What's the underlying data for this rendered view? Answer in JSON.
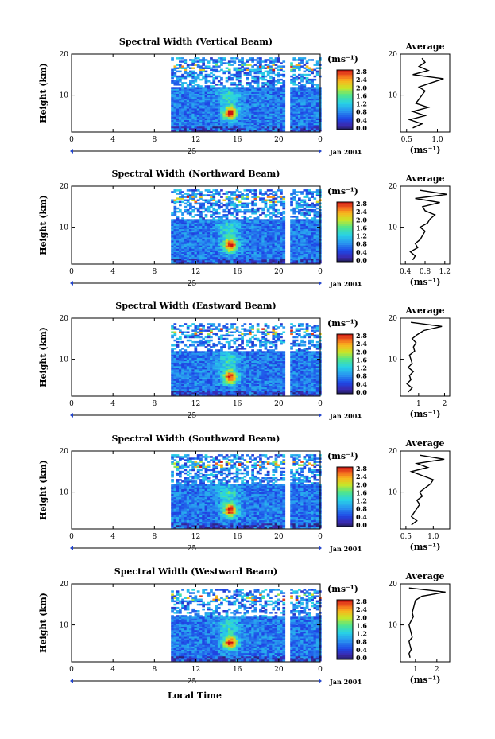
{
  "figure": {
    "x_axis_label": "Local Time",
    "y_axis_label": "Height (km)",
    "date_label": "Jan 2004",
    "day_label": "25",
    "x_ticks": [
      "0",
      "4",
      "8",
      "12",
      "16",
      "20",
      "0"
    ],
    "y_ticks": [
      "10",
      "20"
    ],
    "colorbar_unit": "(ms⁻¹)",
    "colorbar_ticks": [
      "0.0",
      "0.4",
      "0.8",
      "1.2",
      "1.6",
      "2.0",
      "2.4",
      "2.8"
    ],
    "average_title": "Average",
    "average_unit": "(ms⁻¹)"
  },
  "chart_data": [
    {
      "type": "heatmap",
      "title": "Spectral Width (Vertical Beam)",
      "xlabel": "Local Time",
      "ylabel": "Height (km)",
      "xlim": [
        0,
        24
      ],
      "ylim": [
        1,
        20
      ],
      "clim": [
        0.0,
        2.8
      ],
      "data_start_hour": 9.6,
      "gap_hours": [
        20.5,
        20.9
      ],
      "data_top_km": 19.0,
      "average_xticks": [
        "0.5",
        "1.0"
      ],
      "average_xlim": [
        0.4,
        1.2
      ],
      "average_profile": {
        "height_km": [
          2,
          3,
          4,
          5,
          6,
          7,
          8,
          9,
          10,
          11,
          12,
          13,
          14,
          15,
          16,
          17,
          18,
          19
        ],
        "width_ms": [
          0.6,
          0.75,
          0.55,
          0.8,
          0.6,
          0.85,
          0.65,
          0.7,
          0.75,
          0.8,
          0.7,
          0.9,
          1.1,
          0.6,
          0.85,
          0.7,
          0.8,
          0.75
        ]
      }
    },
    {
      "type": "heatmap",
      "title": "Spectral Width (Northward Beam)",
      "xlabel": "Local Time",
      "ylabel": "Height (km)",
      "xlim": [
        0,
        24
      ],
      "ylim": [
        1,
        20
      ],
      "clim": [
        0.0,
        2.8
      ],
      "data_start_hour": 9.6,
      "gap_hours": [
        20.5,
        20.9
      ],
      "data_top_km": 19.0,
      "average_xticks": [
        "0.4",
        "0.8",
        "1.2"
      ],
      "average_xlim": [
        0.3,
        1.3
      ],
      "average_profile": {
        "height_km": [
          2,
          3,
          4,
          5,
          6,
          7,
          8,
          9,
          10,
          11,
          12,
          13,
          14,
          15,
          16,
          17,
          18,
          19
        ],
        "width_ms": [
          0.55,
          0.6,
          0.5,
          0.65,
          0.6,
          0.7,
          0.75,
          0.8,
          0.7,
          0.85,
          0.9,
          1.0,
          0.8,
          0.75,
          1.1,
          0.6,
          1.25,
          0.7
        ]
      }
    },
    {
      "type": "heatmap",
      "title": "Spectral Width (Eastward Beam)",
      "xlabel": "Local Time",
      "ylabel": "Height (km)",
      "xlim": [
        0,
        24
      ],
      "ylim": [
        1,
        20
      ],
      "clim": [
        0.0,
        2.8
      ],
      "data_start_hour": 9.6,
      "gap_hours": [
        20.5,
        20.9
      ],
      "data_top_km": 18.5,
      "average_xticks": [
        "1",
        "2"
      ],
      "average_xlim": [
        0.3,
        2.2
      ],
      "average_profile": {
        "height_km": [
          2,
          3,
          4,
          5,
          6,
          7,
          8,
          9,
          10,
          11,
          12,
          13,
          14,
          15,
          16,
          17,
          18,
          19
        ],
        "width_ms": [
          0.6,
          0.75,
          0.55,
          0.7,
          0.65,
          0.8,
          0.6,
          0.75,
          0.7,
          0.65,
          0.85,
          0.8,
          0.9,
          0.75,
          0.95,
          1.2,
          1.9,
          0.7
        ]
      }
    },
    {
      "type": "heatmap",
      "title": "Spectral Width (Southward Beam)",
      "xlabel": "Local Time",
      "ylabel": "Height (km)",
      "xlim": [
        0,
        24
      ],
      "ylim": [
        1,
        20
      ],
      "clim": [
        0.0,
        2.8
      ],
      "data_start_hour": 9.6,
      "gap_hours": [
        20.5,
        20.9
      ],
      "data_top_km": 19.0,
      "average_xticks": [
        "0.5",
        "1.0"
      ],
      "average_xlim": [
        0.4,
        1.3
      ],
      "average_profile": {
        "height_km": [
          2,
          3,
          4,
          5,
          6,
          7,
          8,
          9,
          10,
          11,
          12,
          13,
          14,
          15,
          16,
          17,
          18,
          19
        ],
        "width_ms": [
          0.6,
          0.7,
          0.6,
          0.65,
          0.7,
          0.75,
          0.7,
          0.8,
          0.75,
          0.85,
          0.95,
          1.0,
          0.8,
          0.6,
          0.9,
          0.7,
          1.2,
          0.75
        ]
      }
    },
    {
      "type": "heatmap",
      "title": "Spectral Width (Westward Beam)",
      "xlabel": "Local Time",
      "ylabel": "Height (km)",
      "xlim": [
        0,
        24
      ],
      "ylim": [
        1,
        20
      ],
      "clim": [
        0.0,
        2.8
      ],
      "data_start_hour": 9.6,
      "gap_hours": [
        20.5,
        20.9
      ],
      "data_top_km": 18.5,
      "average_xticks": [
        "1",
        "2"
      ],
      "average_xlim": [
        0.3,
        2.6
      ],
      "average_profile": {
        "height_km": [
          2,
          3,
          4,
          5,
          6,
          7,
          8,
          9,
          10,
          11,
          12,
          13,
          14,
          15,
          16,
          17,
          18,
          19
        ],
        "width_ms": [
          0.75,
          0.7,
          0.8,
          0.75,
          0.7,
          0.85,
          0.8,
          0.75,
          0.7,
          0.8,
          0.9,
          0.85,
          0.9,
          0.95,
          1.0,
          1.3,
          2.4,
          0.7
        ]
      }
    }
  ]
}
